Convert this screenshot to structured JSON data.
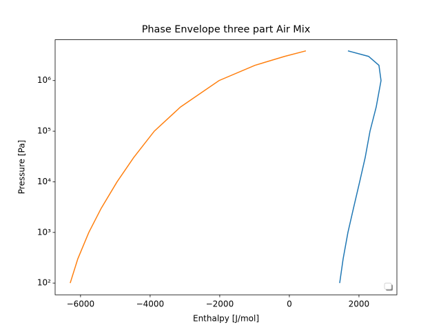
{
  "chart_data": {
    "type": "line",
    "title": "Phase Envelope three part Air Mix",
    "x_label": "Enthalpy [J/mol]",
    "y_label": "Pressure [Pa]",
    "yscale": "log",
    "legend": "lower right",
    "xlim": [
      -6730,
      3090
    ],
    "ylim": [
      58.6,
      6400000
    ],
    "xticks": [
      {
        "value": -6000,
        "label": "−6000"
      },
      {
        "value": -4000,
        "label": "−4000"
      },
      {
        "value": -2000,
        "label": "−2000"
      },
      0,
      2000
    ],
    "yticks": [
      {
        "value": 100,
        "label": "10²"
      },
      {
        "value": 1000,
        "label": "10³"
      },
      {
        "value": 10000,
        "label": "10⁴"
      },
      {
        "value": 100000,
        "label": "10⁵"
      },
      {
        "value": 1000000,
        "label": "10⁶"
      }
    ],
    "series": [
      {
        "color": "#1f77b4",
        "x": [
          1446,
          1545,
          1683,
          1842,
          2020,
          2178,
          2317,
          2495,
          2634,
          2574,
          2277,
          1683
        ],
        "values": [
          100,
          300,
          1000,
          3000,
          10000,
          30000,
          100000,
          300000,
          1000000,
          2000000,
          3000000,
          3860000
        ]
      },
      {
        "color": "#ff7f0e",
        "x": [
          -6297,
          -6079,
          -5762,
          -5406,
          -4950,
          -4475,
          -3881,
          -3129,
          -2020,
          -990,
          -139,
          475
        ],
        "values": [
          100,
          300,
          1000,
          3000,
          10000,
          30000,
          100000,
          300000,
          1000000,
          2000000,
          3000000,
          3860000
        ]
      }
    ]
  }
}
